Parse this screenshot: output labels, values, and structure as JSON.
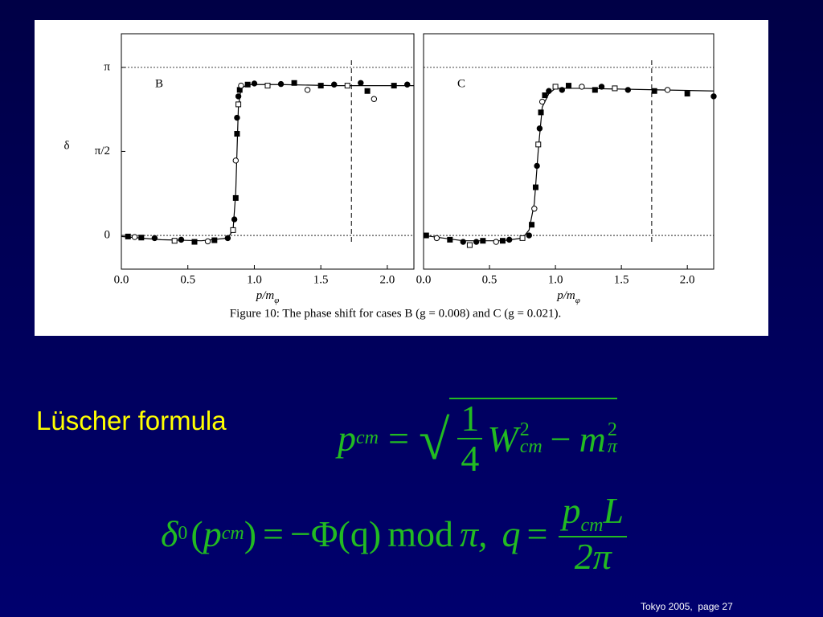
{
  "chart_data": [
    {
      "type": "scatter",
      "title": "B",
      "ylabel": "δ",
      "xlabel": "p/m",
      "xlabel_sub": "φ",
      "xlim": [
        0,
        2.2
      ],
      "ylim": [
        -0.63,
        3.77
      ],
      "xticks": [
        {
          "value": 0,
          "label": "0.0"
        },
        {
          "value": 0.5,
          "label": "0.5"
        },
        {
          "value": 1,
          "label": "1.0"
        },
        {
          "value": 1.5,
          "label": "1.5"
        },
        {
          "value": 2,
          "label": "2.0"
        }
      ],
      "yticks": [
        {
          "value": 0,
          "label": "0"
        },
        {
          "value": 1.5708,
          "label": "π/2"
        },
        {
          "value": 3.1416,
          "label": "π"
        }
      ],
      "hlines": [
        0,
        3.1416
      ],
      "vline": 1.73,
      "series": [
        {
          "style": "line",
          "color": "#000000",
          "x": [
            0,
            0.3,
            0.6,
            0.8,
            0.84,
            0.86,
            0.87,
            0.88,
            0.9,
            0.95,
            1.2,
            1.6,
            2.2
          ],
          "values": [
            -0.02,
            -0.08,
            -0.1,
            -0.05,
            0.1,
            0.8,
            1.6,
            2.4,
            2.75,
            2.82,
            2.82,
            2.8,
            2.8
          ]
        },
        {
          "style": "points",
          "color": "#000000",
          "x": [
            0.05,
            0.1,
            0.15,
            0.25,
            0.4,
            0.45,
            0.55,
            0.65,
            0.7,
            0.8,
            0.84,
            0.85,
            0.86,
            0.86,
            0.87,
            0.87,
            0.88,
            0.88,
            0.89,
            0.9,
            0.95,
            1.0,
            1.1,
            1.2,
            1.3,
            1.4,
            1.5,
            1.6,
            1.7,
            1.8,
            1.85,
            1.9,
            2.05,
            2.15
          ],
          "values": [
            -0.02,
            -0.03,
            -0.04,
            -0.05,
            -0.1,
            -0.08,
            -0.12,
            -0.11,
            -0.09,
            -0.05,
            0.1,
            0.3,
            0.7,
            1.4,
            1.9,
            2.2,
            2.45,
            2.6,
            2.72,
            2.8,
            2.82,
            2.84,
            2.8,
            2.83,
            2.85,
            2.72,
            2.8,
            2.82,
            2.8,
            2.85,
            2.7,
            2.55,
            2.8,
            2.82
          ]
        }
      ]
    },
    {
      "type": "scatter",
      "title": "C",
      "xlabel": "p/m",
      "xlabel_sub": "φ",
      "xlim": [
        0,
        2.2
      ],
      "ylim": [
        -0.63,
        3.77
      ],
      "xticks": [
        {
          "value": 0,
          "label": "0.0"
        },
        {
          "value": 0.5,
          "label": "0.5"
        },
        {
          "value": 1,
          "label": "1.0"
        },
        {
          "value": 1.5,
          "label": "1.5"
        },
        {
          "value": 2,
          "label": "2.0"
        }
      ],
      "hlines": [
        0,
        3.1416
      ],
      "vline": 1.73,
      "series": [
        {
          "style": "line",
          "color": "#000000",
          "x": [
            0,
            0.3,
            0.6,
            0.75,
            0.8,
            0.84,
            0.87,
            0.9,
            0.95,
            1.0,
            1.2,
            1.6,
            2.2
          ],
          "values": [
            0,
            -0.1,
            -0.1,
            -0.05,
            0.1,
            0.6,
            1.6,
            2.4,
            2.65,
            2.75,
            2.75,
            2.73,
            2.7
          ]
        },
        {
          "style": "points",
          "color": "#000000",
          "x": [
            0.02,
            0.1,
            0.2,
            0.3,
            0.35,
            0.4,
            0.45,
            0.55,
            0.6,
            0.65,
            0.75,
            0.8,
            0.82,
            0.84,
            0.85,
            0.86,
            0.87,
            0.88,
            0.89,
            0.9,
            0.92,
            0.95,
            1.0,
            1.05,
            1.1,
            1.2,
            1.3,
            1.35,
            1.45,
            1.55,
            1.75,
            1.85,
            2.0,
            2.2
          ],
          "values": [
            0,
            -0.05,
            -0.08,
            -0.12,
            -0.18,
            -0.12,
            -0.1,
            -0.12,
            -0.1,
            -0.08,
            -0.05,
            0,
            0.2,
            0.5,
            0.9,
            1.3,
            1.7,
            2.0,
            2.3,
            2.5,
            2.62,
            2.7,
            2.78,
            2.72,
            2.8,
            2.78,
            2.72,
            2.78,
            2.75,
            2.72,
            2.7,
            2.72,
            2.65,
            2.6
          ]
        }
      ]
    }
  ],
  "caption": "Figure 10: The phase shift for cases B (g = 0.008) and C (g = 0.021).",
  "heading": "Lüscher formula",
  "formulas": [
    {
      "lhs": "p",
      "lhs_sub": "cm",
      "eq": "=",
      "num": "1",
      "den": "4",
      "w": "W",
      "w_sub": "cm",
      "w_sup": "2",
      "minus": "−",
      "m": "m",
      "m_sub": "π",
      "m_sup": "2"
    },
    {
      "delta": "δ",
      "delta_sub": "0",
      "open": "(",
      "p": "p",
      "p_sub": "cm",
      "close": ")",
      "eq": "=",
      "rhs": "−Φ(q)",
      "mod": "mod",
      "pi": "π,",
      "q": "q",
      "eq2": "=",
      "num_p": "p",
      "num_sub": "cm",
      "num_l": "L",
      "den": "2π"
    }
  ],
  "footer": "Tokyo 2005,  page 27"
}
